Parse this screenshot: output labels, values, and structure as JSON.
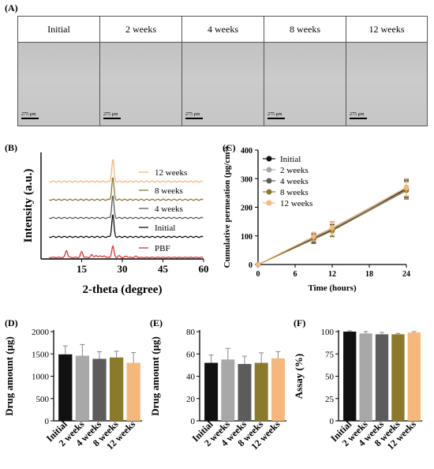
{
  "panels": {
    "A": "(A)",
    "B": "(B)",
    "C": "(C)",
    "D": "(D)",
    "E": "(E)",
    "F": "(F)"
  },
  "microscopy": {
    "columns": [
      "Initial",
      "2 weeks",
      "4 weeks",
      "8 weeks",
      "12 weeks"
    ],
    "scale_label": "275 μm"
  },
  "colors": {
    "Initial": "#111111",
    "2 weeks": "#a8a8a8",
    "4 weeks": "#5c5c5c",
    "8 weeks": "#8c7a2c",
    "12 weeks": "#f7b77a",
    "PBF": "#e53030"
  },
  "chart_data": [
    {
      "id": "B",
      "type": "line",
      "xlabel": "2-theta (degree)",
      "ylabel": "Intensity (a.u.)",
      "xlim": [
        0,
        60
      ],
      "xticks": [
        15,
        30,
        45,
        60
      ],
      "series": [
        {
          "name": "12 weeks",
          "peaks": [
            {
              "x": 26.5,
              "h": 1
            }
          ]
        },
        {
          "name": "8 weeks",
          "peaks": [
            {
              "x": 26.5,
              "h": 1
            }
          ]
        },
        {
          "name": "4 weeks",
          "peaks": [
            {
              "x": 26.5,
              "h": 1
            }
          ]
        },
        {
          "name": "Initial",
          "peaks": [
            {
              "x": 26.5,
              "h": 1
            }
          ]
        },
        {
          "name": "PBF",
          "peaks": [
            {
              "x": 9.4,
              "h": 0.55
            },
            {
              "x": 15.0,
              "h": 0.45
            },
            {
              "x": 18.7,
              "h": 0.2
            },
            {
              "x": 20.2,
              "h": 0.15
            },
            {
              "x": 21.8,
              "h": 0.15
            },
            {
              "x": 23.4,
              "h": 0.12
            },
            {
              "x": 26.5,
              "h": 0.9
            },
            {
              "x": 28.8,
              "h": 0.12
            },
            {
              "x": 31.5,
              "h": 0.1
            },
            {
              "x": 35.0,
              "h": 0.08
            }
          ]
        }
      ]
    },
    {
      "id": "C",
      "type": "line",
      "xlabel": "Time (hours)",
      "ylabel": "Cumulative permeation (μg/cm²)",
      "xlim": [
        0,
        24
      ],
      "ylim": [
        0,
        400
      ],
      "xticks": [
        0,
        6,
        12,
        18,
        24
      ],
      "yticks": [
        0,
        100,
        200,
        300,
        400
      ],
      "x": [
        0,
        9,
        12,
        24
      ],
      "series": [
        {
          "name": "Initial",
          "values": [
            0,
            90,
            120,
            265
          ],
          "err": [
            0,
            15,
            20,
            30
          ]
        },
        {
          "name": "2 weeks",
          "values": [
            0,
            95,
            125,
            270
          ],
          "err": [
            0,
            15,
            25,
            30
          ]
        },
        {
          "name": "4 weeks",
          "values": [
            0,
            92,
            122,
            262
          ],
          "err": [
            0,
            15,
            25,
            30
          ]
        },
        {
          "name": "8 weeks",
          "values": [
            0,
            88,
            118,
            258
          ],
          "err": [
            0,
            15,
            20,
            30
          ]
        },
        {
          "name": "12 weeks",
          "values": [
            0,
            98,
            128,
            268
          ],
          "err": [
            0,
            15,
            20,
            30
          ]
        }
      ]
    },
    {
      "id": "D",
      "type": "bar",
      "ylabel": "Drug amount (μg)",
      "ylim": [
        0,
        2000
      ],
      "yticks": [
        0,
        500,
        1000,
        1500,
        2000
      ],
      "categories": [
        "Initial",
        "2 weeks",
        "4 weeks",
        "8 weeks",
        "12 weeks"
      ],
      "values": [
        1490,
        1460,
        1390,
        1420,
        1300
      ],
      "err": [
        190,
        250,
        160,
        140,
        230
      ]
    },
    {
      "id": "E",
      "type": "bar",
      "ylabel": "Drug amount (μg)",
      "ylim": [
        0,
        80
      ],
      "yticks": [
        0,
        20,
        40,
        60,
        80
      ],
      "categories": [
        "Initial",
        "2 weeks",
        "4 weeks",
        "8 weeks",
        "12 weeks"
      ],
      "values": [
        52,
        55,
        51,
        52,
        56
      ],
      "err": [
        7,
        10,
        7,
        9,
        6
      ]
    },
    {
      "id": "F",
      "type": "bar",
      "ylabel": "Assay (%)",
      "ylim": [
        0,
        100
      ],
      "yticks": [
        0,
        25,
        50,
        75,
        100
      ],
      "categories": [
        "Initial",
        "2 weeks",
        "4 weeks",
        "8 weeks",
        "12 weeks"
      ],
      "values": [
        100,
        98,
        97,
        97,
        99
      ],
      "err": [
        1,
        2,
        2,
        1,
        1
      ]
    }
  ]
}
